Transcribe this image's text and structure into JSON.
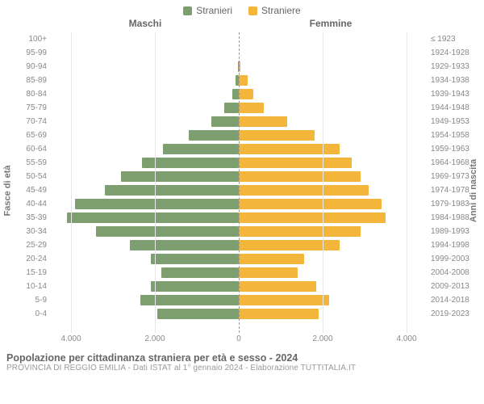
{
  "chart": {
    "type": "population-pyramid",
    "legend": {
      "male": "Stranieri",
      "female": "Straniere"
    },
    "headers": {
      "male": "Maschi",
      "female": "Femmine"
    },
    "ylabel_left": "Fasce di età",
    "ylabel_right": "Anni di nascita",
    "colors": {
      "male": "#7d9e6e",
      "female": "#f3b63b",
      "grid": "#e8e8e8",
      "center": "#999999",
      "bg": "#ffffff"
    },
    "xaxis": {
      "max": 4500,
      "ticks": [
        {
          "pos": -4000,
          "label": "4.000"
        },
        {
          "pos": -2000,
          "label": "2.000"
        },
        {
          "pos": 0,
          "label": "0"
        },
        {
          "pos": 2000,
          "label": "2.000"
        },
        {
          "pos": 4000,
          "label": "4.000"
        }
      ]
    },
    "rows": [
      {
        "age": "100+",
        "year": "≤ 1923",
        "m": 0,
        "f": 0
      },
      {
        "age": "95-99",
        "year": "1924-1928",
        "m": 0,
        "f": 0
      },
      {
        "age": "90-94",
        "year": "1929-1933",
        "m": 20,
        "f": 30
      },
      {
        "age": "85-89",
        "year": "1934-1938",
        "m": 80,
        "f": 220
      },
      {
        "age": "80-84",
        "year": "1939-1943",
        "m": 150,
        "f": 350
      },
      {
        "age": "75-79",
        "year": "1944-1948",
        "m": 350,
        "f": 600
      },
      {
        "age": "70-74",
        "year": "1949-1953",
        "m": 650,
        "f": 1150
      },
      {
        "age": "65-69",
        "year": "1954-1958",
        "m": 1200,
        "f": 1800
      },
      {
        "age": "60-64",
        "year": "1959-1963",
        "m": 1800,
        "f": 2400
      },
      {
        "age": "55-59",
        "year": "1964-1968",
        "m": 2300,
        "f": 2700
      },
      {
        "age": "50-54",
        "year": "1969-1973",
        "m": 2800,
        "f": 2900
      },
      {
        "age": "45-49",
        "year": "1974-1978",
        "m": 3200,
        "f": 3100
      },
      {
        "age": "40-44",
        "year": "1979-1983",
        "m": 3900,
        "f": 3400
      },
      {
        "age": "35-39",
        "year": "1984-1988",
        "m": 4100,
        "f": 3500
      },
      {
        "age": "30-34",
        "year": "1989-1993",
        "m": 3400,
        "f": 2900
      },
      {
        "age": "25-29",
        "year": "1994-1998",
        "m": 2600,
        "f": 2400
      },
      {
        "age": "20-24",
        "year": "1999-2003",
        "m": 2100,
        "f": 1550
      },
      {
        "age": "15-19",
        "year": "2004-2008",
        "m": 1850,
        "f": 1400
      },
      {
        "age": "10-14",
        "year": "2009-2013",
        "m": 2100,
        "f": 1850
      },
      {
        "age": "5-9",
        "year": "2014-2018",
        "m": 2350,
        "f": 2150
      },
      {
        "age": "0-4",
        "year": "2019-2023",
        "m": 1950,
        "f": 1900
      }
    ],
    "fontsize": {
      "tick": 10,
      "legend": 12,
      "header": 12,
      "ylabel": 11,
      "title": 12.5,
      "subtitle": 10
    }
  },
  "footer": {
    "title": "Popolazione per cittadinanza straniera per età e sesso - 2024",
    "subtitle": "PROVINCIA DI REGGIO EMILIA - Dati ISTAT al 1° gennaio 2024 - Elaborazione TUTTITALIA.IT"
  }
}
